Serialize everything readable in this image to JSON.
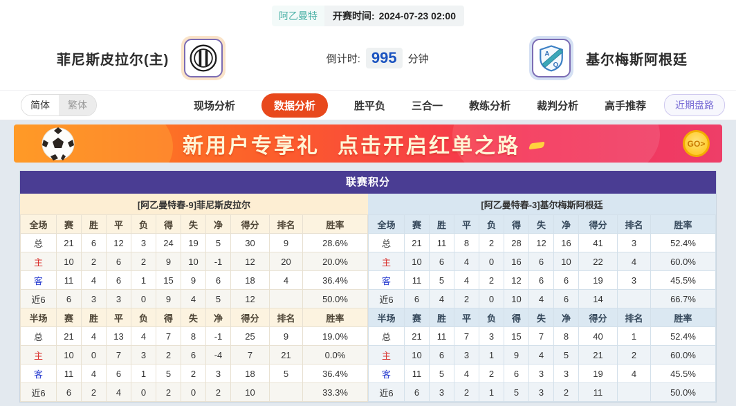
{
  "header": {
    "league_badge": "阿乙曼特",
    "kickoff_label": "开赛时间:",
    "kickoff_time": "2024-07-23 02:00",
    "home_team": "菲尼斯皮拉尔(主)",
    "away_team": "基尔梅斯阿根廷",
    "countdown_label": "倒计时:",
    "countdown_value": "995",
    "countdown_unit": "分钟"
  },
  "nav": {
    "lang_simplified": "简体",
    "lang_traditional": "繁体",
    "tabs": [
      "现场分析",
      "数据分析",
      "胜平负",
      "三合一",
      "教练分析",
      "裁判分析",
      "高手推荐"
    ],
    "active_tab": "数据分析",
    "recent_button": "近期盘路"
  },
  "banner": {
    "text1": "新用户专享礼",
    "text2": "点击开启红单之路",
    "go_label": "GO>"
  },
  "league_table": {
    "title": "联赛积分",
    "home_header": "[阿乙曼特春-9]菲尼斯皮拉尔",
    "away_header": "[阿乙曼特春-3]基尔梅斯阿根廷",
    "columns": [
      "赛",
      "胜",
      "平",
      "负",
      "得",
      "失",
      "净",
      "得分",
      "排名",
      "胜率"
    ],
    "sections": [
      {
        "key": "full",
        "label": "全场"
      },
      {
        "key": "half",
        "label": "半场"
      }
    ],
    "row_labels": [
      "总",
      "主",
      "客",
      "近6"
    ],
    "home": {
      "full": [
        [
          "21",
          "6",
          "12",
          "3",
          "24",
          "19",
          "5",
          "30",
          "9",
          "28.6%"
        ],
        [
          "10",
          "2",
          "6",
          "2",
          "9",
          "10",
          "-1",
          "12",
          "20",
          "20.0%"
        ],
        [
          "11",
          "4",
          "6",
          "1",
          "15",
          "9",
          "6",
          "18",
          "4",
          "36.4%"
        ],
        [
          "6",
          "3",
          "3",
          "0",
          "9",
          "4",
          "5",
          "12",
          "",
          "50.0%"
        ]
      ],
      "half": [
        [
          "21",
          "4",
          "13",
          "4",
          "7",
          "8",
          "-1",
          "25",
          "9",
          "19.0%"
        ],
        [
          "10",
          "0",
          "7",
          "3",
          "2",
          "6",
          "-4",
          "7",
          "21",
          "0.0%"
        ],
        [
          "11",
          "4",
          "6",
          "1",
          "5",
          "2",
          "3",
          "18",
          "5",
          "36.4%"
        ],
        [
          "6",
          "2",
          "4",
          "0",
          "2",
          "0",
          "2",
          "10",
          "",
          "33.3%"
        ]
      ]
    },
    "away": {
      "full": [
        [
          "21",
          "11",
          "8",
          "2",
          "28",
          "12",
          "16",
          "41",
          "3",
          "52.4%"
        ],
        [
          "10",
          "6",
          "4",
          "0",
          "16",
          "6",
          "10",
          "22",
          "4",
          "60.0%"
        ],
        [
          "11",
          "5",
          "4",
          "2",
          "12",
          "6",
          "6",
          "19",
          "3",
          "45.5%"
        ],
        [
          "6",
          "4",
          "2",
          "0",
          "10",
          "4",
          "6",
          "14",
          "",
          "66.7%"
        ]
      ],
      "half": [
        [
          "21",
          "11",
          "7",
          "3",
          "15",
          "7",
          "8",
          "40",
          "1",
          "52.4%"
        ],
        [
          "10",
          "6",
          "3",
          "1",
          "9",
          "4",
          "5",
          "21",
          "2",
          "60.0%"
        ],
        [
          "11",
          "5",
          "4",
          "2",
          "6",
          "3",
          "3",
          "19",
          "4",
          "45.5%"
        ],
        [
          "6",
          "3",
          "2",
          "1",
          "5",
          "3",
          "2",
          "11",
          "",
          "50.0%"
        ]
      ]
    }
  },
  "colors": {
    "accent_tab": "#e8481c",
    "table_header_purple": "#4a3d93",
    "league_badge_teal": "#49b0a5",
    "countdown_blue": "#1b53c0",
    "home_label_red": "#d9302c",
    "away_label_blue": "#2b3fd0",
    "home_panel_cream": "#fdeed3",
    "away_panel_blue": "#d8e6f1",
    "banner_gradient_start": "#ff8c1c",
    "banner_gradient_end": "#ee3e68"
  }
}
